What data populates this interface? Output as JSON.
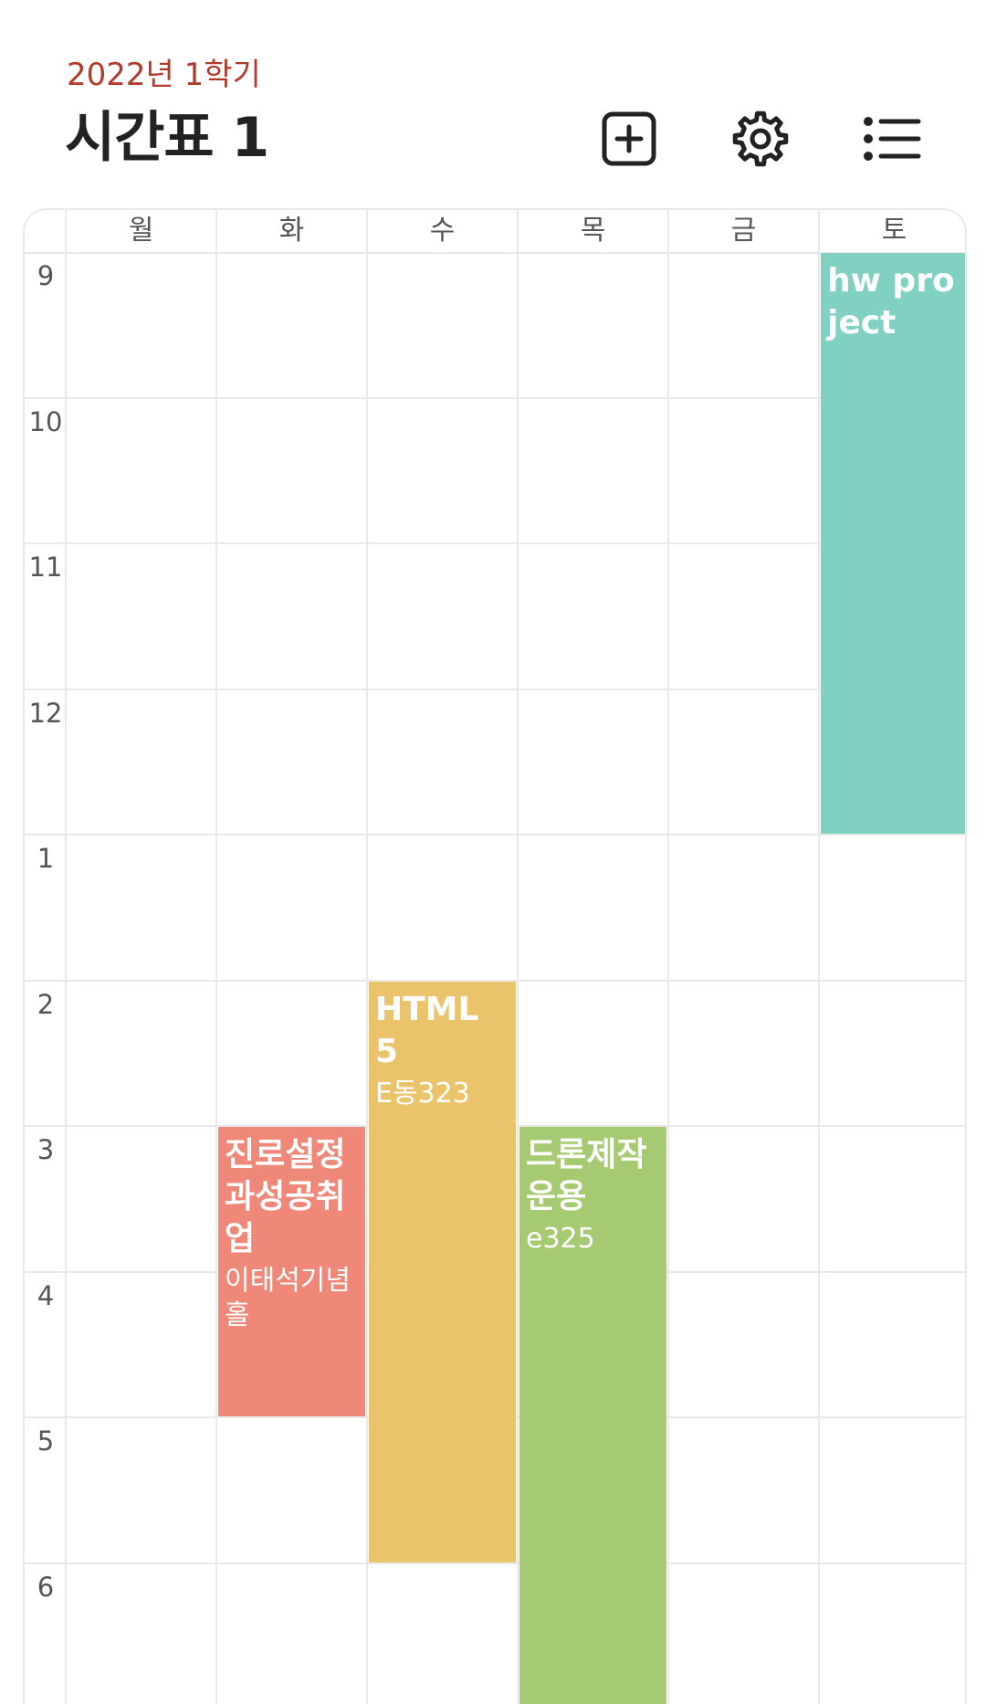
{
  "header": {
    "semester": "2022년 1학기",
    "title": "시간표 1"
  },
  "toolbar": {
    "add_icon": "plus-square-icon",
    "settings_icon": "gear-icon",
    "list_icon": "list-icon"
  },
  "grid": {
    "days": [
      "월",
      "화",
      "수",
      "목",
      "금",
      "토"
    ],
    "hours": [
      "9",
      "10",
      "11",
      "12",
      "1",
      "2",
      "3",
      "4",
      "5",
      "6"
    ]
  },
  "events": [
    {
      "title": "hw project",
      "room": "",
      "day": "토",
      "start_hour": 9,
      "end_hour": 13,
      "color": "#80d1c1"
    },
    {
      "title": "HTML 5",
      "room": "E동323",
      "day": "수",
      "start_hour": 14,
      "end_hour": 18,
      "color": "#ebc36a"
    },
    {
      "title": "진로설정과성공취업",
      "room": "이태석기념홀",
      "day": "화",
      "start_hour": 15,
      "end_hour": 17,
      "color": "#ef8878"
    },
    {
      "title": "드론제작운용",
      "room": "e325",
      "day": "목",
      "start_hour": 15,
      "end_hour": 19,
      "color": "#a6ca72"
    }
  ]
}
